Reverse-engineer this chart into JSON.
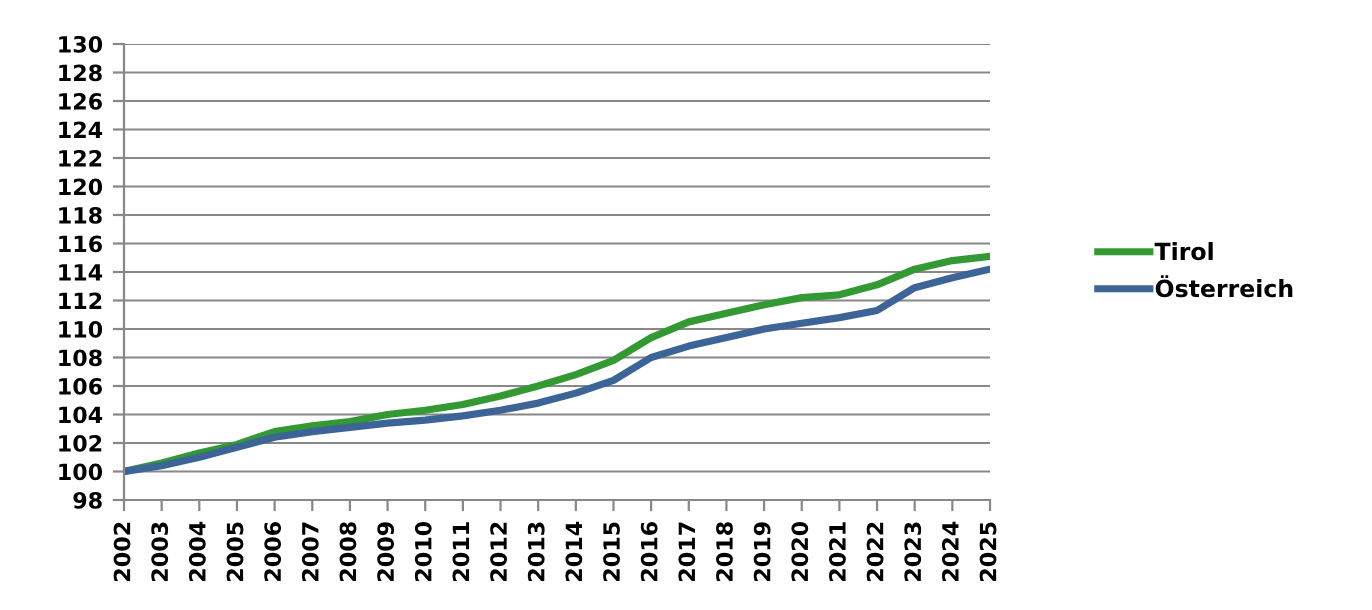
{
  "chart_data": {
    "type": "line",
    "categories": [
      "2002",
      "2003",
      "2004",
      "2005",
      "2006",
      "2007",
      "2008",
      "2009",
      "2010",
      "2011",
      "2012",
      "2013",
      "2014",
      "2015",
      "2016",
      "2017",
      "2018",
      "2019",
      "2020",
      "2021",
      "2022",
      "2023",
      "2024",
      "2025"
    ],
    "series": [
      {
        "name": "Tirol",
        "color": "#339933",
        "values": [
          100,
          100.6,
          101.3,
          101.9,
          102.8,
          103.2,
          103.5,
          104.0,
          104.3,
          104.7,
          105.3,
          106.0,
          106.8,
          107.8,
          109.4,
          110.5,
          111.1,
          111.7,
          112.2,
          112.4,
          113.1,
          114.2,
          114.8,
          115.1
        ]
      },
      {
        "name": "Österreich",
        "color": "#3d6496",
        "values": [
          100,
          100.4,
          101.0,
          101.7,
          102.4,
          102.8,
          103.1,
          103.4,
          103.6,
          103.9,
          104.3,
          104.8,
          105.5,
          106.4,
          108.0,
          108.8,
          109.4,
          110.0,
          110.4,
          110.8,
          111.3,
          112.9,
          113.6,
          114.2
        ]
      }
    ],
    "ylim": [
      98,
      130
    ],
    "yticks": [
      98,
      100,
      102,
      104,
      106,
      108,
      110,
      112,
      114,
      116,
      118,
      120,
      122,
      124,
      126,
      128,
      130
    ],
    "grid": "y",
    "legend": "right",
    "marker": "none",
    "line_style": "solid"
  }
}
